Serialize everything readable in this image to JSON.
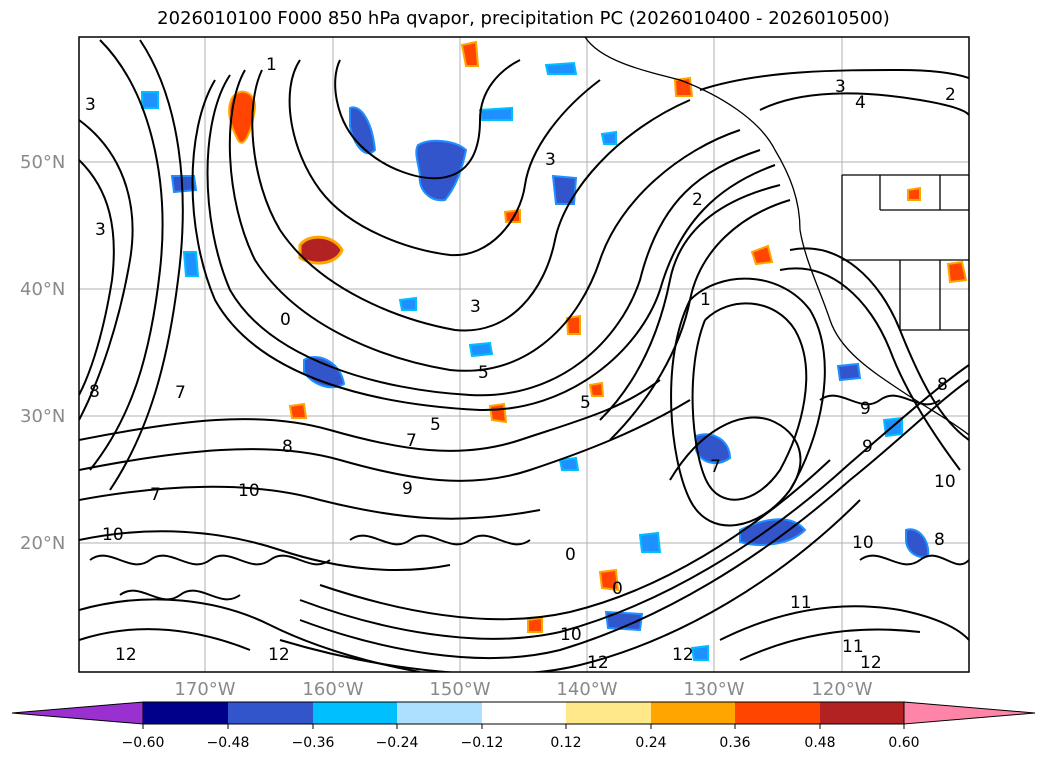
{
  "title": "2026010100 F000 850 hPa qvapor, precipitation PC (2026010400 - 2026010500)",
  "lat_labels": [
    "50°N",
    "40°N",
    "30°N",
    "20°N"
  ],
  "lon_labels": [
    "170°W",
    "160°W",
    "150°W",
    "140°W",
    "130°W",
    "120°W"
  ],
  "colorbar": {
    "ticks": [
      "−0.60",
      "−0.48",
      "−0.36",
      "−0.24",
      "−0.12",
      "0.12",
      "0.24",
      "0.36",
      "0.48",
      "0.60"
    ],
    "colors": [
      "#9b30d0",
      "#00008b",
      "#3355cc",
      "#00bfff",
      "#addfff",
      "#ffffff",
      "#ffe88a",
      "#ffa500",
      "#ff4500",
      "#b22222",
      "#ff85a8"
    ]
  },
  "contour_labels": [
    "1",
    "3",
    "4",
    "3",
    "2",
    "5",
    "3",
    "0",
    "1",
    "2",
    "5",
    "7",
    "5",
    "10",
    "7",
    "10",
    "8",
    "10",
    "12",
    "12",
    "11",
    "12",
    "12",
    "10",
    "12",
    "11",
    "9",
    "8",
    "9",
    "10",
    "8",
    "9",
    "7",
    "3",
    "8",
    "7",
    "3",
    "0",
    "0"
  ],
  "map_colors": {
    "precip_orange": "#ff4500",
    "precip_light_orange": "#ffa500",
    "precip_dark_blue": "#3355cc",
    "precip_light_blue": "#1e90ff",
    "grid": "#b0b0b0",
    "coast": "#000000"
  }
}
